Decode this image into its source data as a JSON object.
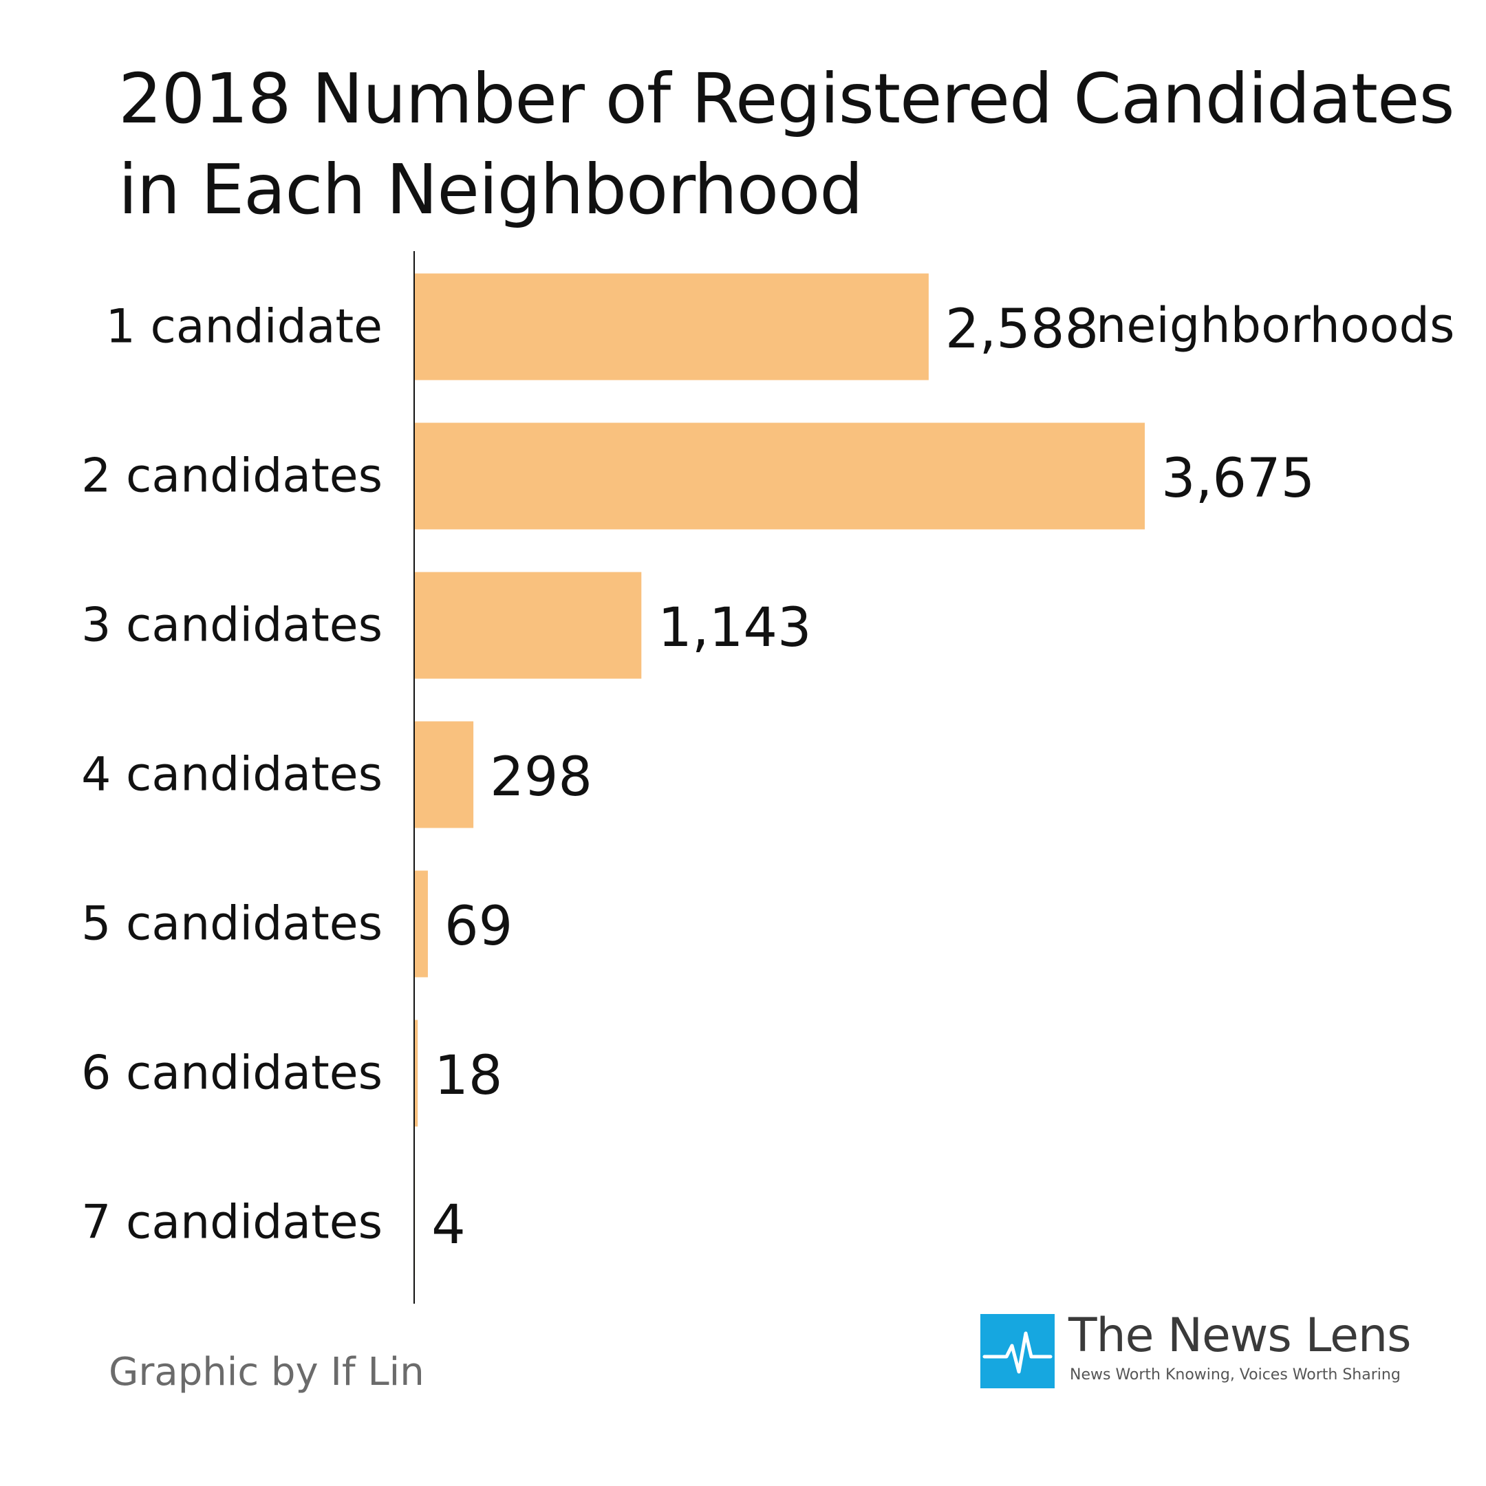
{
  "title": {
    "line1": "2018 Number of Registered Candidates",
    "line2": "in Each Neighborhood"
  },
  "colors": {
    "bar": "#f9c17e",
    "axis": "#111111",
    "brand": "#16a7e0"
  },
  "chart_data": {
    "type": "bar",
    "orientation": "horizontal",
    "title": "2018 Number of Registered Candidates in Each Neighborhood",
    "categories": [
      "1 candidate",
      "2 candidates",
      "3 candidates",
      "4 candidates",
      "5 candidates",
      "6 candidates",
      "7 candidates"
    ],
    "values": [
      2588,
      3675,
      1143,
      298,
      69,
      18,
      4
    ],
    "value_labels": [
      "2,588",
      "3,675",
      "1,143",
      "298",
      "69",
      "18",
      "4"
    ],
    "unit_label": "neighborhoods",
    "xlim": [
      0,
      3675
    ],
    "grid": false,
    "xlabel": "",
    "ylabel": ""
  },
  "footer": {
    "credit": "Graphic by If Lin",
    "brand_name": "The News Lens",
    "brand_tagline": "News Worth Knowing, Voices Worth Sharing",
    "brand_icon": "pulse-line-icon"
  }
}
